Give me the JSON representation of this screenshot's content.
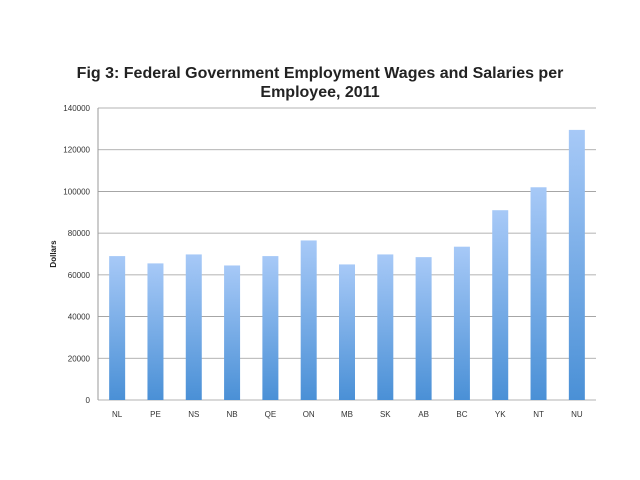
{
  "chart_data": {
    "type": "bar",
    "title_lines": [
      "Fig 3: Federal Government Employment Wages and Salaries per",
      "Employee, 2011"
    ],
    "xlabel": "",
    "ylabel": "Dollars",
    "categories": [
      "NL",
      "PE",
      "NS",
      "NB",
      "QE",
      "ON",
      "MB",
      "SK",
      "AB",
      "BC",
      "YK",
      "NT",
      "NU"
    ],
    "values": [
      69000,
      65500,
      69800,
      64500,
      69000,
      76500,
      65000,
      69800,
      68500,
      73500,
      91000,
      102000,
      129500
    ],
    "ylim": [
      0,
      140000
    ],
    "yticks": [
      0,
      20000,
      40000,
      60000,
      80000,
      100000,
      120000,
      140000
    ],
    "grid": true,
    "legend": "none",
    "colors": {
      "bar_top": "#a7c9f7",
      "bar_bottom": "#4a90d6",
      "grid": "#9a9a9a"
    }
  }
}
